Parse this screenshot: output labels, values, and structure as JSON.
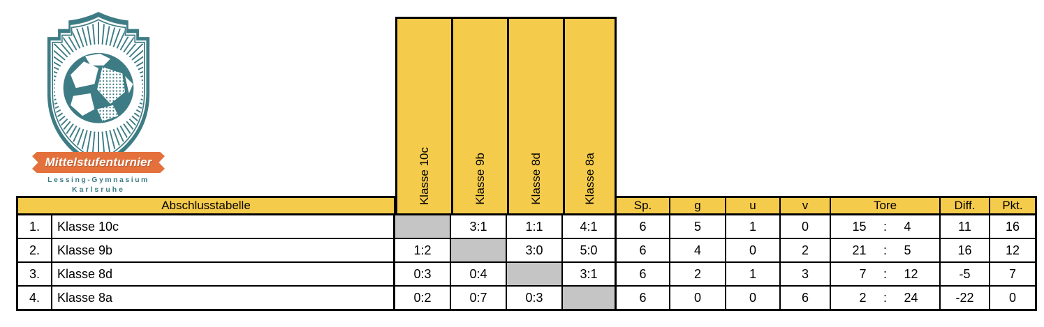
{
  "logo": {
    "banner_text": "Mittelstufenturnier",
    "school": "Lessing-Gymnasium",
    "city": "Karlsruhe"
  },
  "colors": {
    "yellow": "#F5CB4B",
    "gray": "#C5C5C5",
    "teal": "#3E7C85",
    "orange": "#E4713C"
  },
  "table": {
    "title": "Abschlusstabelle",
    "cross_columns": [
      "Klasse 10c",
      "Klasse 9b",
      "Klasse 8d",
      "Klasse 8a"
    ],
    "stat_columns": [
      "Sp.",
      "g",
      "u",
      "v",
      "Tore",
      "Diff.",
      "Pkt."
    ],
    "tore_sep": ":",
    "rows": [
      {
        "rank": "1.",
        "name": "Klasse 10c",
        "r0": "",
        "r1": "3:1",
        "r2": "1:1",
        "r3": "4:1",
        "sp": "6",
        "g": "5",
        "u": "1",
        "v": "0",
        "tore_for": "15",
        "tore_against": "4",
        "diff": "11",
        "pkt": "16"
      },
      {
        "rank": "2.",
        "name": "Klasse 9b",
        "r0": "1:2",
        "r1": "",
        "r2": "3:0",
        "r3": "5:0",
        "sp": "6",
        "g": "4",
        "u": "0",
        "v": "2",
        "tore_for": "21",
        "tore_against": "5",
        "diff": "16",
        "pkt": "12"
      },
      {
        "rank": "3.",
        "name": "Klasse 8d",
        "r0": "0:3",
        "r1": "0:4",
        "r2": "",
        "r3": "3:1",
        "sp": "6",
        "g": "2",
        "u": "1",
        "v": "3",
        "tore_for": "7",
        "tore_against": "12",
        "diff": "-5",
        "pkt": "7"
      },
      {
        "rank": "4.",
        "name": "Klasse 8a",
        "r0": "0:2",
        "r1": "0:7",
        "r2": "0:3",
        "r3": "",
        "sp": "6",
        "g": "0",
        "u": "0",
        "v": "6",
        "tore_for": "2",
        "tore_against": "24",
        "diff": "-22",
        "pkt": "0"
      }
    ]
  }
}
